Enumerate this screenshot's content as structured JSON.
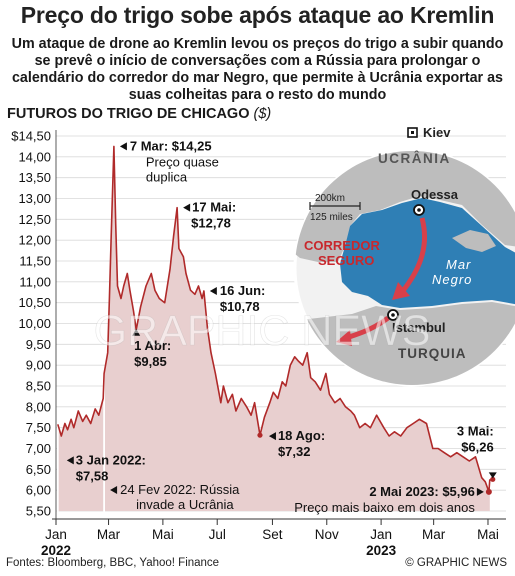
{
  "header": {
    "title": "Preço do trigo sobe após ataque ao Kremlin",
    "subtitle": "Um ataque de drone ao Kremlin levou os preços do trigo a subir quando se prevê o início de conversações com a Rússia para prolongar o calendário do corredor do mar Negro, que permite à Ucrânia exportar as suas colheitas para o resto do mundo"
  },
  "chart_heading": {
    "label": "FUTUROS DO TRIGO DE CHICAGO",
    "unit": "($)"
  },
  "footer": {
    "sources": "Fontes: Bloomberg, BBC, Yahoo! Finance",
    "credit": "© GRAPHIC NEWS"
  },
  "watermark": "GRAPHIC NEWS",
  "colors": {
    "line": "#b02a2a",
    "area": "#e8cfcf",
    "map_sea": "#2f7fb5",
    "map_land": "#bfbfbf",
    "arrow": "#d8404a",
    "corridor_text": "#c8282d"
  },
  "map": {
    "kiev": "Kiev",
    "ukraine": "UCRÂNIA",
    "odessa": "Odessa",
    "scale_km": "200km",
    "scale_miles": "125 miles",
    "corridor": [
      "CORREDOR",
      "SEGURO"
    ],
    "sea": [
      "Mar",
      "Negro"
    ],
    "istanbul": "Istambul",
    "turkey": "TURQUIA"
  },
  "chart_data": {
    "type": "area",
    "ylim": [
      5.5,
      14.5
    ],
    "y_ticks": [
      "$14,50",
      "14,00",
      "13,50",
      "13,00",
      "12,50",
      "12,00",
      "11,50",
      "11,00",
      "10,50",
      "10,00",
      "9,50",
      "9,00",
      "8,50",
      "8,00",
      "7,50",
      "7,00",
      "6,50",
      "6,00",
      "5,50"
    ],
    "y_tick_values": [
      14.5,
      14,
      13.5,
      13,
      12.5,
      12,
      11.5,
      11,
      10.5,
      10,
      9.5,
      9,
      8.5,
      8,
      7.5,
      7,
      6.5,
      6,
      5.5
    ],
    "x_ticks": [
      {
        "label": "Jan",
        "sub": "2022",
        "x": "2022-01-01"
      },
      {
        "label": "Mar",
        "sub": "",
        "x": "2022-03-01"
      },
      {
        "label": "Mai",
        "sub": "",
        "x": "2022-05-01"
      },
      {
        "label": "Jul",
        "sub": "",
        "x": "2022-07-01"
      },
      {
        "label": "Set",
        "sub": "",
        "x": "2022-09-01"
      },
      {
        "label": "Nov",
        "sub": "",
        "x": "2022-11-01"
      },
      {
        "label": "Jan",
        "sub": "2023",
        "x": "2023-01-01"
      },
      {
        "label": "Mar",
        "sub": "",
        "x": "2023-03-01"
      },
      {
        "label": "Mai",
        "sub": "",
        "x": "2023-05-01"
      }
    ],
    "series": [
      {
        "points": [
          [
            "2022-01-03",
            7.58
          ],
          [
            "2022-01-07",
            7.3
          ],
          [
            "2022-01-11",
            7.6
          ],
          [
            "2022-01-14",
            7.45
          ],
          [
            "2022-01-18",
            7.7
          ],
          [
            "2022-01-21",
            7.5
          ],
          [
            "2022-01-26",
            7.9
          ],
          [
            "2022-01-31",
            7.65
          ],
          [
            "2022-02-04",
            7.8
          ],
          [
            "2022-02-09",
            7.6
          ],
          [
            "2022-02-14",
            7.95
          ],
          [
            "2022-02-18",
            7.8
          ],
          [
            "2022-02-23",
            8.2
          ],
          [
            "2022-02-24",
            8.8
          ],
          [
            "2022-02-28",
            9.3
          ],
          [
            "2022-03-02",
            10.6
          ],
          [
            "2022-03-04",
            12.1
          ],
          [
            "2022-03-07",
            14.25
          ],
          [
            "2022-03-09",
            12.4
          ],
          [
            "2022-03-11",
            10.9
          ],
          [
            "2022-03-15",
            10.6
          ],
          [
            "2022-03-18",
            10.9
          ],
          [
            "2022-03-22",
            11.2
          ],
          [
            "2022-03-25",
            10.8
          ],
          [
            "2022-03-29",
            10.3
          ],
          [
            "2022-04-01",
            9.85
          ],
          [
            "2022-04-06",
            10.4
          ],
          [
            "2022-04-12",
            10.9
          ],
          [
            "2022-04-18",
            11.2
          ],
          [
            "2022-04-22",
            10.8
          ],
          [
            "2022-04-27",
            10.6
          ],
          [
            "2022-05-03",
            10.5
          ],
          [
            "2022-05-09",
            11.3
          ],
          [
            "2022-05-13",
            12.1
          ],
          [
            "2022-05-17",
            12.78
          ],
          [
            "2022-05-19",
            11.8
          ],
          [
            "2022-05-24",
            11.6
          ],
          [
            "2022-05-27",
            11.2
          ],
          [
            "2022-06-01",
            10.8
          ],
          [
            "2022-06-06",
            10.7
          ],
          [
            "2022-06-10",
            10.9
          ],
          [
            "2022-06-14",
            10.6
          ],
          [
            "2022-06-16",
            10.78
          ],
          [
            "2022-06-20",
            9.9
          ],
          [
            "2022-06-24",
            9.3
          ],
          [
            "2022-06-29",
            8.8
          ],
          [
            "2022-07-05",
            8.1
          ],
          [
            "2022-07-08",
            8.5
          ],
          [
            "2022-07-13",
            8.1
          ],
          [
            "2022-07-18",
            8.3
          ],
          [
            "2022-07-22",
            7.9
          ],
          [
            "2022-07-28",
            8.2
          ],
          [
            "2022-08-03",
            8.0
          ],
          [
            "2022-08-08",
            7.8
          ],
          [
            "2022-08-12",
            8.1
          ],
          [
            "2022-08-18",
            7.32
          ],
          [
            "2022-08-23",
            7.75
          ],
          [
            "2022-08-29",
            8.1
          ],
          [
            "2022-09-02",
            8.35
          ],
          [
            "2022-09-07",
            8.2
          ],
          [
            "2022-09-12",
            8.6
          ],
          [
            "2022-09-16",
            8.5
          ],
          [
            "2022-09-21",
            9.0
          ],
          [
            "2022-09-26",
            9.2
          ],
          [
            "2022-09-30",
            9.1
          ],
          [
            "2022-10-05",
            9.0
          ],
          [
            "2022-10-10",
            9.3
          ],
          [
            "2022-10-14",
            8.7
          ],
          [
            "2022-10-19",
            8.6
          ],
          [
            "2022-10-25",
            8.4
          ],
          [
            "2022-10-31",
            8.8
          ],
          [
            "2022-11-04",
            8.3
          ],
          [
            "2022-11-10",
            8.1
          ],
          [
            "2022-11-16",
            8.2
          ],
          [
            "2022-11-22",
            8.0
          ],
          [
            "2022-11-28",
            7.9
          ],
          [
            "2022-12-02",
            7.8
          ],
          [
            "2022-12-08",
            7.5
          ],
          [
            "2022-12-14",
            7.6
          ],
          [
            "2022-12-20",
            7.5
          ],
          [
            "2022-12-27",
            7.8
          ],
          [
            "2023-01-04",
            7.5
          ],
          [
            "2023-01-10",
            7.3
          ],
          [
            "2023-01-16",
            7.4
          ],
          [
            "2023-01-23",
            7.3
          ],
          [
            "2023-01-30",
            7.5
          ],
          [
            "2023-02-06",
            7.6
          ],
          [
            "2023-02-13",
            7.7
          ],
          [
            "2023-02-21",
            7.6
          ],
          [
            "2023-02-28",
            7.0
          ],
          [
            "2023-03-06",
            7.0
          ],
          [
            "2023-03-13",
            6.9
          ],
          [
            "2023-03-20",
            6.8
          ],
          [
            "2023-03-27",
            6.9
          ],
          [
            "2023-04-03",
            6.8
          ],
          [
            "2023-04-10",
            6.7
          ],
          [
            "2023-04-17",
            6.8
          ],
          [
            "2023-04-24",
            6.3
          ],
          [
            "2023-04-28",
            6.2
          ],
          [
            "2023-05-02",
            5.96
          ],
          [
            "2023-05-03",
            6.26
          ]
        ]
      }
    ],
    "annotations": [
      {
        "id": "mar7",
        "date": "2022-03-07",
        "value": 14.25,
        "label": "7 Mar: $14,25",
        "note": [
          "Preço quase",
          "duplica"
        ]
      },
      {
        "id": "may17",
        "date": "2022-05-17",
        "value": 12.78,
        "label": "17 Mai:",
        "value_label": "$12,78"
      },
      {
        "id": "jun16",
        "date": "2022-06-16",
        "value": 10.78,
        "label": "16 Jun:",
        "value_label": "$10,78"
      },
      {
        "id": "apr1",
        "date": "2022-04-01",
        "value": 9.85,
        "label": "1 Abr:",
        "value_label": "$9,85"
      },
      {
        "id": "aug18",
        "date": "2022-08-18",
        "value": 7.32,
        "label": "18 Ago:",
        "value_label": "$7,32"
      },
      {
        "id": "jan3",
        "date": "2022-01-03",
        "value": 7.58,
        "label": "3 Jan 2022:",
        "value_label": "$7,58"
      },
      {
        "id": "feb24",
        "date": "2022-02-24",
        "label": "24 Fev 2022: Rússia",
        "note": [
          "invade a Ucrânia"
        ]
      },
      {
        "id": "may2",
        "date": "2023-05-02",
        "value": 5.96,
        "label": "2 Mai 2023: $5,96",
        "note": [
          "Preço mais baixo em dois anos"
        ]
      },
      {
        "id": "may3",
        "date": "2023-05-03",
        "value": 6.26,
        "label": "3 Mai:",
        "value_label": "$6,26"
      }
    ]
  }
}
